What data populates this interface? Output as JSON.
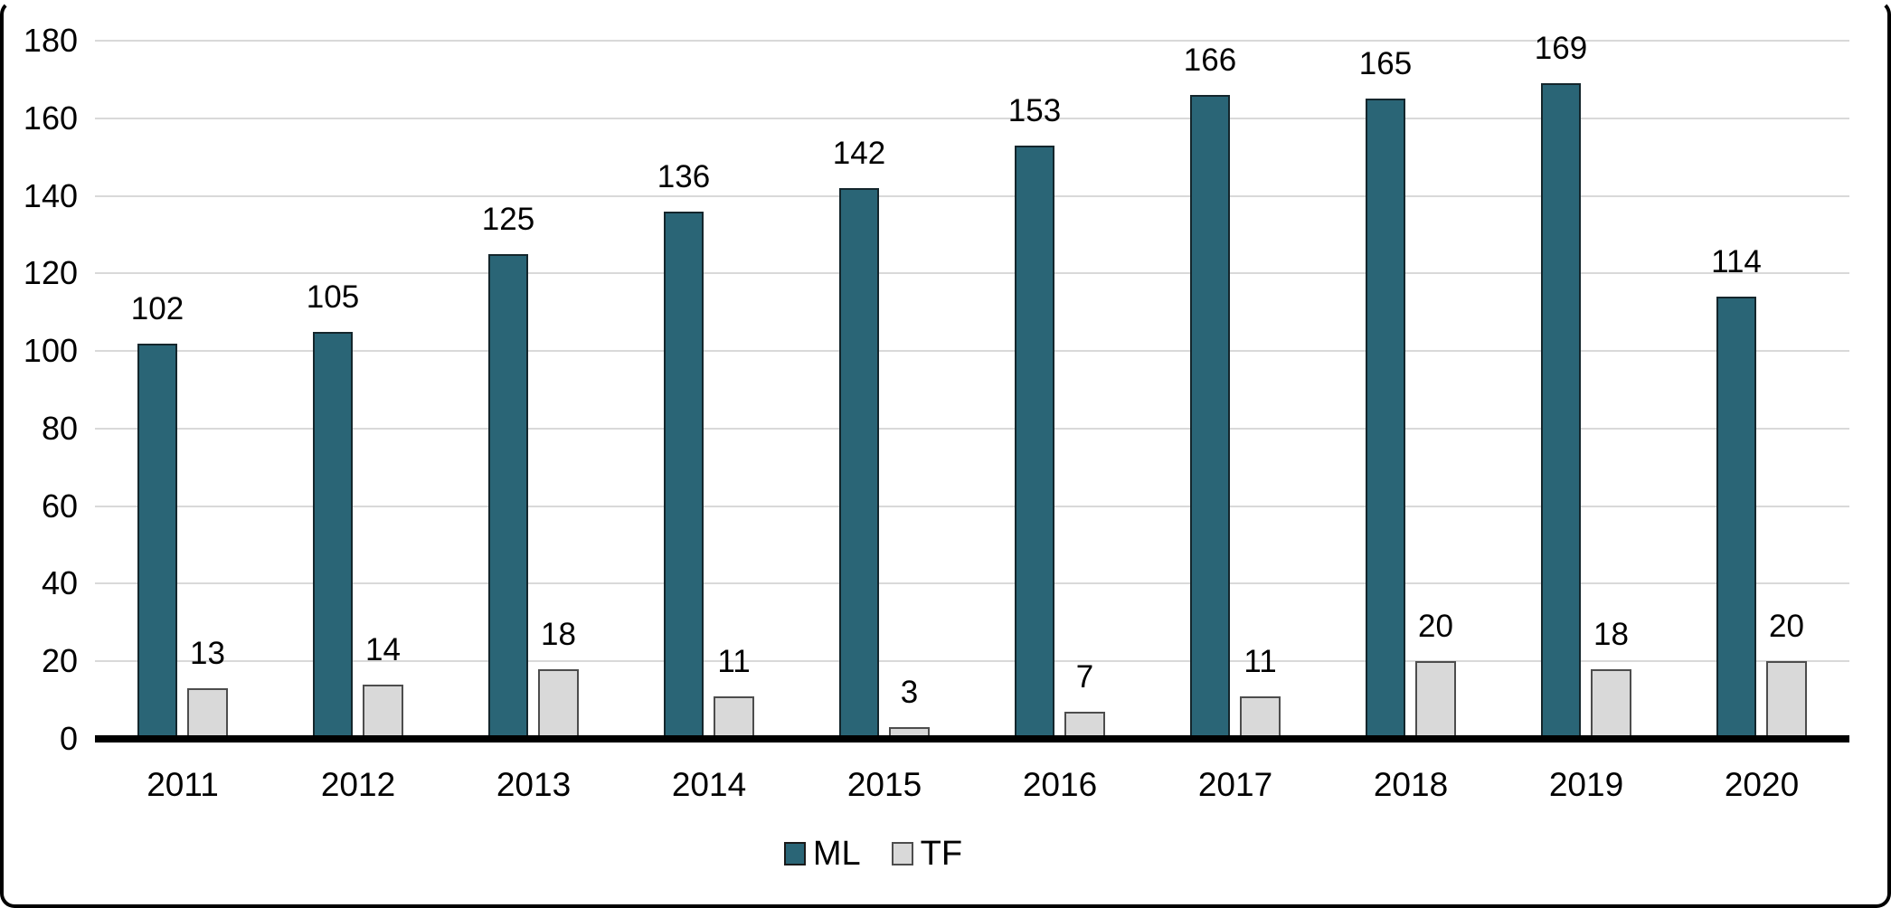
{
  "chart_data": {
    "type": "bar",
    "title": "",
    "xlabel": "",
    "ylabel": "",
    "categories": [
      "2011",
      "2012",
      "2013",
      "2014",
      "2015",
      "2016",
      "2017",
      "2018",
      "2019",
      "2020"
    ],
    "series": [
      {
        "name": "ML",
        "color": "#2A6576",
        "border_color": "#14262c",
        "values": [
          102,
          105,
          125,
          136,
          142,
          153,
          166,
          165,
          169,
          114
        ]
      },
      {
        "name": "TF",
        "color": "#D9D9D9",
        "border_color": "#4d4d4d",
        "values": [
          13,
          14,
          18,
          11,
          3,
          7,
          11,
          20,
          18,
          20
        ]
      }
    ],
    "ylim": [
      0,
      180
    ],
    "ytick_step": 20,
    "yticks": [
      0,
      20,
      40,
      60,
      80,
      100,
      120,
      140,
      160,
      180
    ],
    "grid": "horizontal",
    "grid_color": "#D9D9D9",
    "axis_color": "#000000",
    "background_color": "#FFFFFF",
    "frame_border_color": "#000000",
    "value_labels": true,
    "legend_position": "bottom"
  },
  "legend": {
    "items": [
      {
        "label": "ML"
      },
      {
        "label": "TF"
      }
    ]
  }
}
